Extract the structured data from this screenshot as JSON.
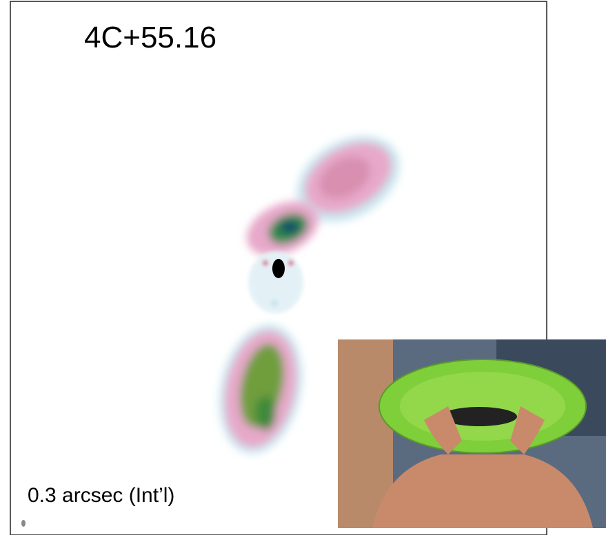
{
  "title": "4C+55.16",
  "caption": "0.3 arcsec (Int’l)"
}
